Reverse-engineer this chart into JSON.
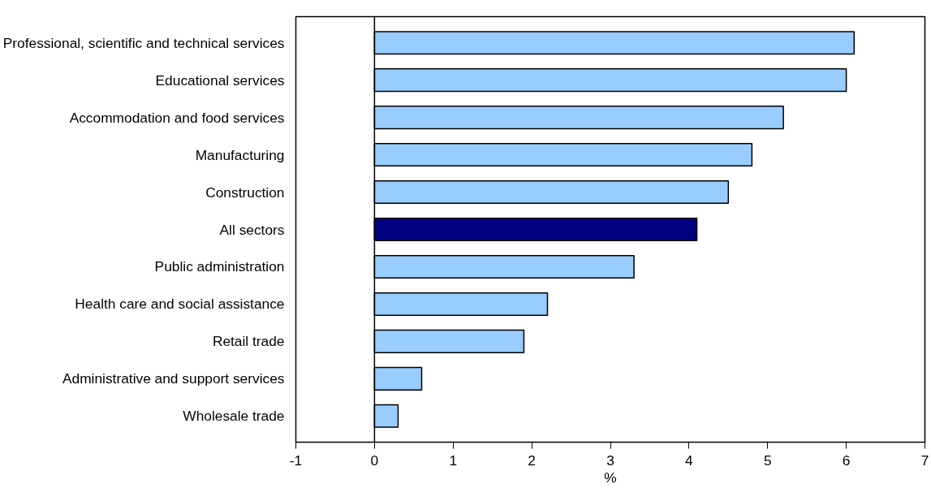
{
  "chart_data": {
    "type": "bar",
    "orientation": "horizontal",
    "xlabel": "%",
    "categories": [
      "Professional, scientific and technical services",
      "Educational services",
      "Accommodation and food services",
      "Manufacturing",
      "Construction",
      "All sectors",
      "Public administration",
      "Health care and social assistance",
      "Retail trade",
      "Administrative and support services",
      "Wholesale trade"
    ],
    "values": [
      6.1,
      6.0,
      5.2,
      4.8,
      4.5,
      4.1,
      3.3,
      2.2,
      1.9,
      0.6,
      0.3
    ],
    "colors": [
      "#99ccff",
      "#99ccff",
      "#99ccff",
      "#99ccff",
      "#99ccff",
      "#000080",
      "#99ccff",
      "#99ccff",
      "#99ccff",
      "#99ccff",
      "#99ccff"
    ],
    "xlim": [
      -1,
      7
    ],
    "xticks": [
      -1,
      0,
      1,
      2,
      3,
      4,
      5,
      6,
      7
    ],
    "ref_lines": [
      {
        "axis": "x",
        "value": 0,
        "color": "#000000"
      }
    ],
    "grid": false
  }
}
